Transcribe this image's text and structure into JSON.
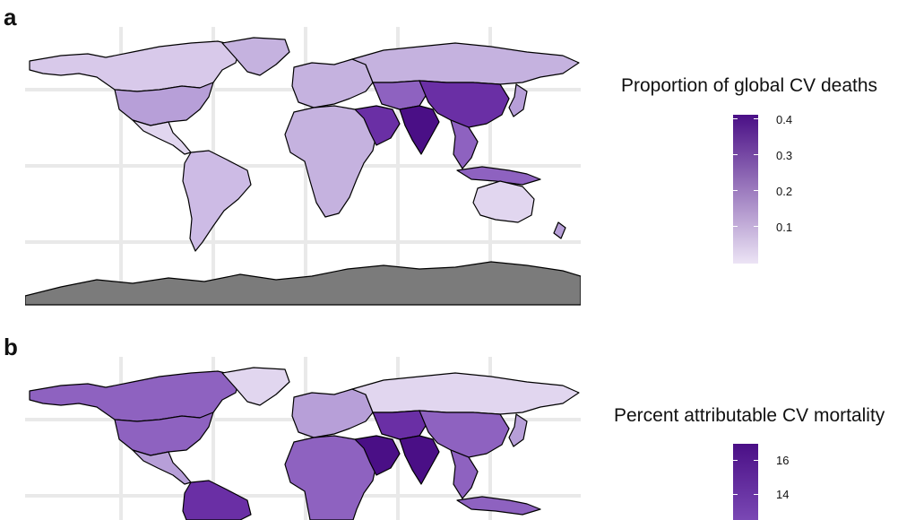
{
  "panels": [
    {
      "label": "a",
      "legend": {
        "title": "Proportion of global CV deaths",
        "ticks": [
          "0.4",
          "0.3",
          "0.2",
          "0.1"
        ]
      },
      "colors": {
        "low": "#ece4f5",
        "high": "#4a0f86"
      }
    },
    {
      "label": "b",
      "legend": {
        "title": "Percent attributable CV mortality",
        "ticks": [
          "16",
          "14"
        ]
      },
      "colors": {
        "low": "#ece4f5",
        "high": "#4a0f86"
      }
    }
  ],
  "map_colors": {
    "ocean": "#ffffff",
    "graticule": "#e9e9e9",
    "antarctica": "#7b7b7b",
    "border": "#000000"
  }
}
